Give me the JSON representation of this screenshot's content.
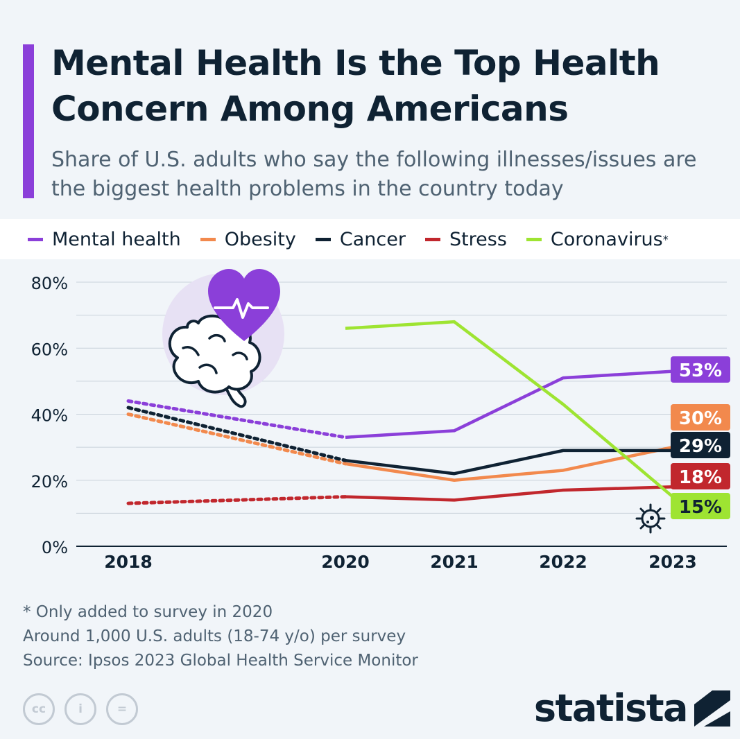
{
  "header": {
    "title": "Mental Health Is the Top Health Concern Among Americans",
    "subtitle": "Share of U.S. adults who say the following illnesses/issues are the biggest health problems in the country today"
  },
  "legend": {
    "items": [
      {
        "label": "Mental health",
        "suffix": "",
        "color": "#8b3fd9"
      },
      {
        "label": "Obesity",
        "suffix": "",
        "color": "#f2894d"
      },
      {
        "label": "Cancer",
        "suffix": "",
        "color": "#0f2233"
      },
      {
        "label": "Stress",
        "suffix": "",
        "color": "#c1272d"
      },
      {
        "label": "Coronavirus",
        "suffix": "*",
        "color": "#9ee432"
      }
    ]
  },
  "chart_data": {
    "type": "line",
    "title": "Mental Health Is the Top Health Concern Among Americans",
    "xlabel": "",
    "ylabel": "",
    "x": [
      2018,
      2020,
      2021,
      2022,
      2023
    ],
    "x_labels": [
      "2018",
      "2020",
      "2021",
      "2022",
      "2023"
    ],
    "ylim": [
      0,
      80
    ],
    "y_ticks": [
      0,
      20,
      40,
      60,
      80
    ],
    "y_tick_labels": [
      "0%",
      "20%",
      "40%",
      "60%",
      "80%"
    ],
    "grid": true,
    "dotted_segment": "2018-2020",
    "series": [
      {
        "name": "Mental health",
        "color": "#8b3fd9",
        "x": [
          2018,
          2020,
          2021,
          2022,
          2023
        ],
        "values": [
          44,
          33,
          35,
          51,
          53
        ],
        "end_label": "53%"
      },
      {
        "name": "Obesity",
        "color": "#f2894d",
        "x": [
          2018,
          2020,
          2021,
          2022,
          2023
        ],
        "values": [
          40,
          25,
          20,
          23,
          30
        ],
        "end_label": "30%"
      },
      {
        "name": "Cancer",
        "color": "#0f2233",
        "x": [
          2018,
          2020,
          2021,
          2022,
          2023
        ],
        "values": [
          42,
          26,
          22,
          29,
          29
        ],
        "end_label": "29%"
      },
      {
        "name": "Stress",
        "color": "#c1272d",
        "x": [
          2018,
          2020,
          2021,
          2022,
          2023
        ],
        "values": [
          13,
          15,
          14,
          17,
          18
        ],
        "end_label": "18%"
      },
      {
        "name": "Coronavirus",
        "color": "#9ee432",
        "x": [
          2020,
          2021,
          2022,
          2023
        ],
        "values": [
          66,
          68,
          43,
          15
        ],
        "end_label": "15%"
      }
    ]
  },
  "notes": {
    "line1": "* Only added to survey in 2020",
    "line2": "Around 1,000 U.S. adults (18-74 y/o) per survey",
    "line3": "Source: Ipsos 2023 Global Health Service Monitor"
  },
  "footer": {
    "cc_icons": [
      "cc",
      "i",
      "="
    ],
    "brand": "statista"
  }
}
